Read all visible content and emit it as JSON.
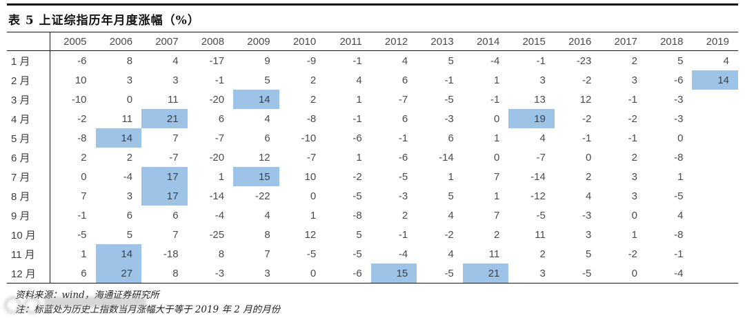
{
  "page_title": "表 5 上证综指历年月度涨幅（%）",
  "table": {
    "columns": [
      "2005",
      "2006",
      "2007",
      "2008",
      "2009",
      "2010",
      "2011",
      "2012",
      "2013",
      "2014",
      "2015",
      "2016",
      "2017",
      "2018",
      "2019"
    ],
    "rows": [
      {
        "label": "1 月",
        "values": [
          -6,
          8,
          4,
          -17,
          9,
          -9,
          -1,
          4,
          5,
          -4,
          -1,
          -23,
          2,
          5,
          4
        ]
      },
      {
        "label": "2 月",
        "values": [
          10,
          3,
          3,
          -1,
          5,
          2,
          4,
          6,
          -1,
          1,
          3,
          -2,
          3,
          -6,
          14
        ]
      },
      {
        "label": "3 月",
        "values": [
          -10,
          0,
          11,
          -20,
          14,
          2,
          1,
          -7,
          -5,
          -1,
          13,
          12,
          -1,
          -3,
          null
        ]
      },
      {
        "label": "4 月",
        "values": [
          -2,
          11,
          21,
          6,
          4,
          -8,
          -1,
          6,
          -3,
          0,
          19,
          -2,
          -2,
          -3,
          null
        ]
      },
      {
        "label": "5 月",
        "values": [
          -8,
          14,
          7,
          -7,
          6,
          -10,
          -6,
          -1,
          6,
          1,
          4,
          -1,
          -1,
          0,
          null
        ]
      },
      {
        "label": "6 月",
        "values": [
          2,
          2,
          -7,
          -20,
          12,
          -7,
          1,
          -6,
          -14,
          0,
          -7,
          0,
          2,
          -8,
          null
        ]
      },
      {
        "label": "7 月",
        "values": [
          0,
          -4,
          17,
          1,
          15,
          10,
          -2,
          -5,
          1,
          7,
          -14,
          2,
          3,
          1,
          null
        ]
      },
      {
        "label": "8 月",
        "values": [
          7,
          3,
          17,
          -14,
          -22,
          0,
          -5,
          -3,
          5,
          1,
          -12,
          4,
          3,
          -5,
          null
        ]
      },
      {
        "label": "9 月",
        "values": [
          -1,
          6,
          6,
          -4,
          4,
          1,
          -8,
          2,
          4,
          7,
          -5,
          -3,
          0,
          4,
          null
        ]
      },
      {
        "label": "10 月",
        "values": [
          -5,
          5,
          7,
          -25,
          8,
          12,
          5,
          -1,
          -2,
          2,
          11,
          3,
          1,
          -8,
          null
        ]
      },
      {
        "label": "11 月",
        "values": [
          1,
          14,
          -18,
          8,
          7,
          -5,
          -5,
          -4,
          4,
          11,
          2,
          5,
          -2,
          -1,
          null
        ]
      },
      {
        "label": "12 月",
        "values": [
          6,
          27,
          8,
          -3,
          3,
          0,
          -6,
          15,
          -5,
          21,
          3,
          -5,
          0,
          -4,
          null
        ]
      }
    ],
    "highlight_threshold": 14,
    "highlight_color": "#9dc3e6"
  },
  "footer": {
    "source": "资料来源：wind，海通证券研究所",
    "note": "注：标蓝处为历史上指数当月涨幅大于等于 2019 年 2 月的月份"
  }
}
